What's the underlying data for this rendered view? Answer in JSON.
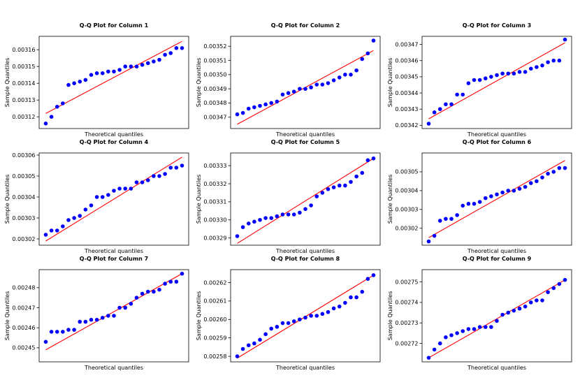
{
  "figure": {
    "layout": "3x3",
    "point_color": "#0000ff",
    "line_color": "#ff0000"
  },
  "chart_data": [
    {
      "type": "scatter",
      "title": "Q-Q Plot for Column 1",
      "xlabel": "Theoretical quantiles",
      "ylabel": "Sample Quantiles",
      "yticks": [
        "0.00312",
        "0.00313",
        "0.00314",
        "0.00315",
        "0.00316"
      ],
      "ylim": [
        0.003113,
        0.003168
      ],
      "line": [
        0.003122,
        0.003165
      ],
      "points": [
        0.003116,
        0.00312,
        0.003126,
        0.003128,
        0.003139,
        0.00314,
        0.003141,
        0.003142,
        0.003145,
        0.003146,
        0.003146,
        0.003147,
        0.003147,
        0.003148,
        0.00315,
        0.00315,
        0.00315,
        0.003151,
        0.003152,
        0.003153,
        0.003154,
        0.003157,
        0.003158,
        0.003161,
        0.003161
      ]
    },
    {
      "type": "scatter",
      "title": "Q-Q Plot for Column 2",
      "xlabel": "Theoretical quantiles",
      "ylabel": "Sample Quantiles",
      "yticks": [
        "0.00347",
        "0.00348",
        "0.00349",
        "0.00350",
        "0.00351",
        "0.00352"
      ],
      "ylim": [
        0.003462,
        0.003527
      ],
      "line": [
        0.003465,
        0.003517
      ],
      "points": [
        0.003472,
        0.003473,
        0.003476,
        0.003477,
        0.003478,
        0.003479,
        0.00348,
        0.003481,
        0.003486,
        0.003487,
        0.003488,
        0.00349,
        0.00349,
        0.003491,
        0.003493,
        0.003493,
        0.003494,
        0.003496,
        0.003498,
        0.0035,
        0.0035,
        0.003503,
        0.003511,
        0.003515,
        0.003524
      ]
    },
    {
      "type": "scatter",
      "title": "Q-Q Plot for Column 3",
      "xlabel": "Theoretical quantiles",
      "ylabel": "Sample Quantiles",
      "yticks": [
        "0.00342",
        "0.00343",
        "0.00344",
        "0.00345",
        "0.00346",
        "0.00347"
      ],
      "ylim": [
        0.003418,
        0.003475
      ],
      "line": [
        0.003424,
        0.003471
      ],
      "points": [
        0.003421,
        0.003428,
        0.00343,
        0.003433,
        0.003433,
        0.003439,
        0.003439,
        0.003446,
        0.003448,
        0.003448,
        0.003449,
        0.00345,
        0.003451,
        0.003452,
        0.003452,
        0.003452,
        0.003453,
        0.003453,
        0.003455,
        0.003456,
        0.003457,
        0.003459,
        0.00346,
        0.00346,
        0.003473
      ]
    },
    {
      "type": "scatter",
      "title": "Q-Q Plot for Column 4",
      "xlabel": "Theoretical quantiles",
      "ylabel": "Sample Quantiles",
      "yticks": [
        "0.00302",
        "0.00303",
        "0.00304",
        "0.00305",
        "0.00306"
      ],
      "ylim": [
        0.003017,
        0.003061
      ],
      "line": [
        0.003019,
        0.003059
      ],
      "points": [
        0.003022,
        0.003024,
        0.003024,
        0.003026,
        0.003029,
        0.00303,
        0.003031,
        0.003034,
        0.003036,
        0.00304,
        0.00304,
        0.003041,
        0.003043,
        0.003044,
        0.003044,
        0.003044,
        0.003047,
        0.003047,
        0.003048,
        0.00305,
        0.00305,
        0.003051,
        0.003054,
        0.003054,
        0.003055
      ]
    },
    {
      "type": "scatter",
      "title": "Q-Q Plot for Column 5",
      "xlabel": "Theoretical quantiles",
      "ylabel": "Sample Quantiles",
      "yticks": [
        "0.00329",
        "0.00330",
        "0.00331",
        "0.00332",
        "0.00333"
      ],
      "ylim": [
        0.003286,
        0.003337
      ],
      "line": [
        0.003287,
        0.003334
      ],
      "points": [
        0.003291,
        0.003296,
        0.003298,
        0.003299,
        0.0033,
        0.003301,
        0.003301,
        0.003302,
        0.003303,
        0.003303,
        0.003303,
        0.003304,
        0.003306,
        0.003308,
        0.003313,
        0.003315,
        0.003317,
        0.003318,
        0.003319,
        0.003319,
        0.003321,
        0.003324,
        0.003326,
        0.003333,
        0.003334
      ]
    },
    {
      "type": "scatter",
      "title": "Q-Q Plot for Column 6",
      "xlabel": "Theoretical quantiles",
      "ylabel": "Sample Quantiles",
      "yticks": [
        "0.00302",
        "0.00303",
        "0.00304",
        "0.00305"
      ],
      "ylim": [
        0.003011,
        0.00306
      ],
      "line": [
        0.003015,
        0.003056
      ],
      "points": [
        0.003013,
        0.003016,
        0.003024,
        0.003025,
        0.003025,
        0.003027,
        0.003032,
        0.003033,
        0.003033,
        0.003034,
        0.003036,
        0.003037,
        0.003038,
        0.003039,
        0.00304,
        0.00304,
        0.003041,
        0.003042,
        0.003044,
        0.003045,
        0.003047,
        0.003049,
        0.00305,
        0.003052,
        0.003052
      ]
    },
    {
      "type": "scatter",
      "title": "Q-Q Plot for Column 7",
      "xlabel": "Theoretical quantiles",
      "ylabel": "Sample Quantiles",
      "yticks": [
        "0.00245",
        "0.00246",
        "0.00247",
        "0.00248"
      ],
      "ylim": [
        0.002443,
        0.002489
      ],
      "line": [
        0.002449,
        0.002487
      ],
      "points": [
        0.002453,
        0.002458,
        0.002458,
        0.002458,
        0.002459,
        0.002459,
        0.002463,
        0.002463,
        0.002464,
        0.002464,
        0.002465,
        0.002466,
        0.002466,
        0.00247,
        0.00247,
        0.002472,
        0.002475,
        0.002477,
        0.002478,
        0.002478,
        0.002479,
        0.002482,
        0.002483,
        0.002483,
        0.002487
      ]
    },
    {
      "type": "scatter",
      "title": "Q-Q Plot for Column 8",
      "xlabel": "Theoretical quantiles",
      "ylabel": "Sample Quantiles",
      "yticks": [
        "0.00258",
        "0.00259",
        "0.00260",
        "0.00261",
        "0.00262"
      ],
      "ylim": [
        0.002577,
        0.002627
      ],
      "line": [
        0.002579,
        0.002624
      ],
      "points": [
        0.00258,
        0.002584,
        0.002586,
        0.002587,
        0.002589,
        0.002592,
        0.002595,
        0.002596,
        0.002598,
        0.002598,
        0.002599,
        0.0026,
        0.002601,
        0.002602,
        0.002602,
        0.002603,
        0.002604,
        0.002606,
        0.002607,
        0.002609,
        0.002612,
        0.002612,
        0.002615,
        0.002622,
        0.002624
      ]
    },
    {
      "type": "scatter",
      "title": "Q-Q Plot for Column 9",
      "xlabel": "Theoretical quantiles",
      "ylabel": "Sample Quantiles",
      "yticks": [
        "0.00272",
        "0.00273",
        "0.00274",
        "0.00275"
      ],
      "ylim": [
        0.002711,
        0.002756
      ],
      "line": [
        0.002713,
        0.002751
      ],
      "points": [
        0.002713,
        0.002717,
        0.00272,
        0.002723,
        0.002724,
        0.002725,
        0.002726,
        0.002727,
        0.002727,
        0.002728,
        0.002728,
        0.002728,
        0.002731,
        0.002734,
        0.002735,
        0.002736,
        0.002737,
        0.002738,
        0.00274,
        0.002741,
        0.002741,
        0.002745,
        0.002747,
        0.002749,
        0.002751
      ]
    }
  ]
}
